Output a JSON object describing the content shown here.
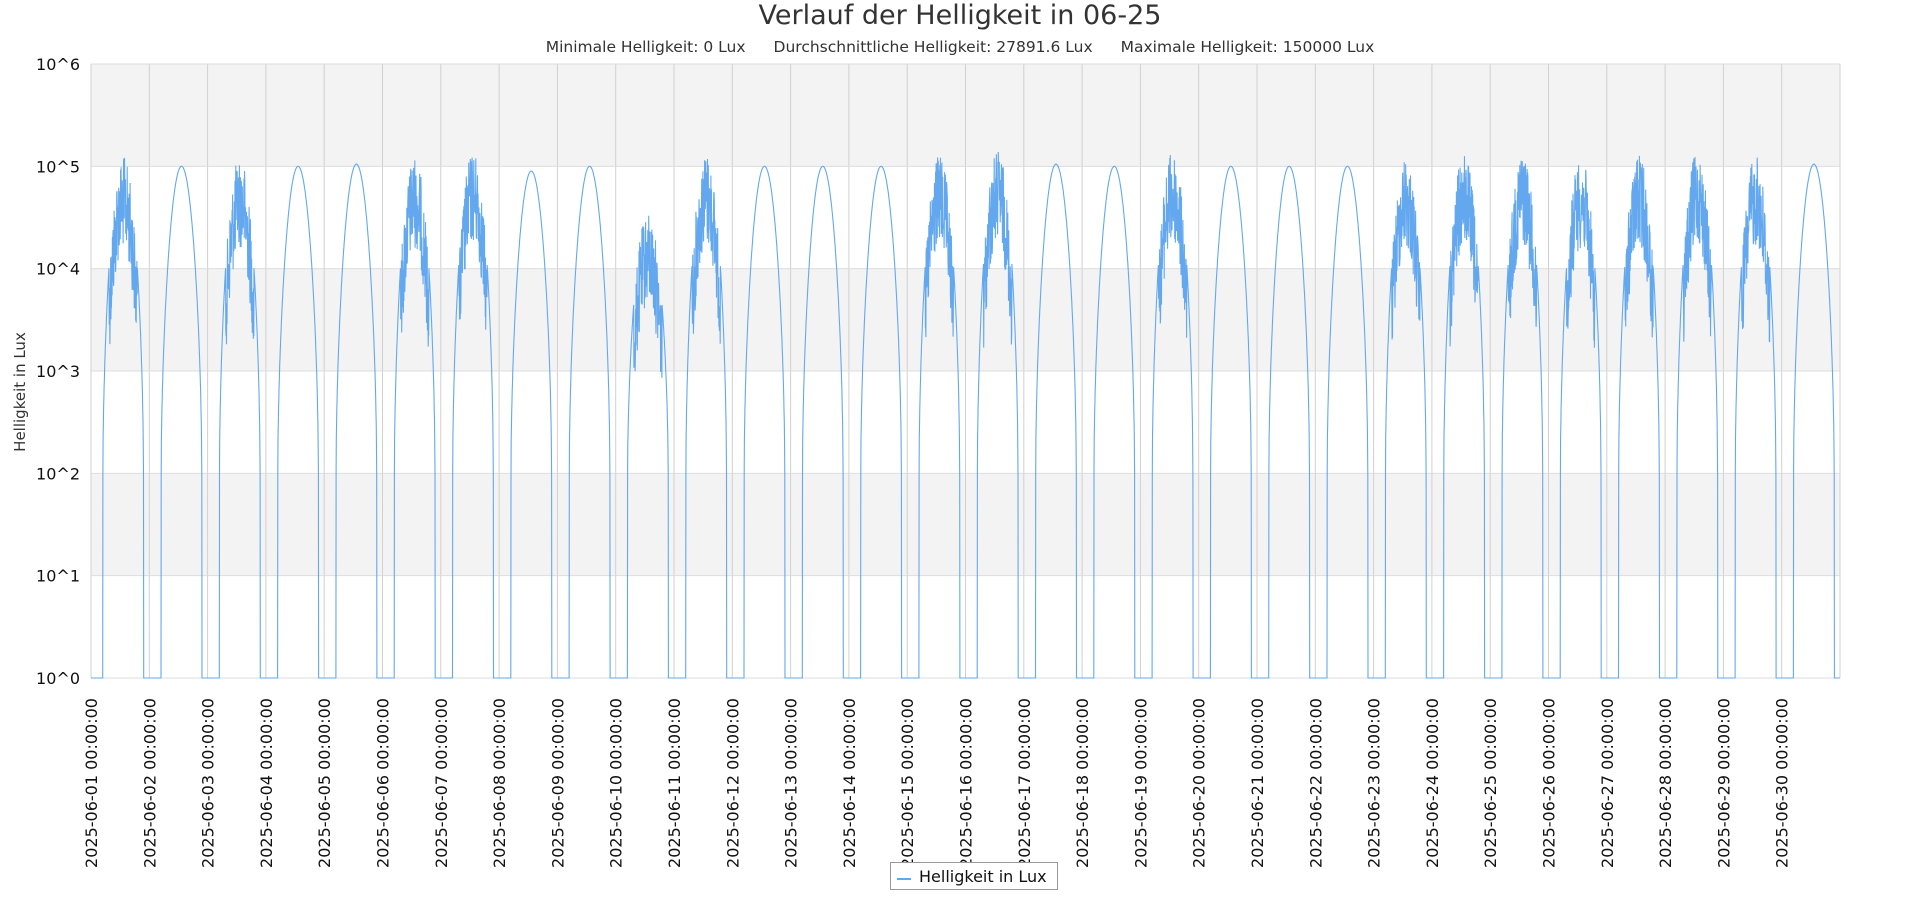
{
  "chart_data": {
    "type": "line",
    "title": "Verlauf der Helligkeit in 06-25",
    "subtitles": [
      "Minimale Helligkeit: 0 Lux",
      "Durchschnittliche Helligkeit: 27891.6 Lux",
      "Maximale Helligkeit: 150000 Lux"
    ],
    "xlabel": "",
    "ylabel": "Helligkeit in Lux",
    "y_scale": "log",
    "ylim": [
      1,
      1000000
    ],
    "y_tick_labels": [
      "10^0",
      "10^1",
      "10^2",
      "10^3",
      "10^4",
      "10^5",
      "10^6"
    ],
    "x_tick_labels": [
      "2025-06-01 00:00:00",
      "2025-06-02 00:00:00",
      "2025-06-03 00:00:00",
      "2025-06-04 00:00:00",
      "2025-06-05 00:00:00",
      "2025-06-06 00:00:00",
      "2025-06-07 00:00:00",
      "2025-06-08 00:00:00",
      "2025-06-09 00:00:00",
      "2025-06-10 00:00:00",
      "2025-06-11 00:00:00",
      "2025-06-12 00:00:00",
      "2025-06-13 00:00:00",
      "2025-06-14 00:00:00",
      "2025-06-15 00:00:00",
      "2025-06-16 00:00:00",
      "2025-06-17 00:00:00",
      "2025-06-18 00:00:00",
      "2025-06-19 00:00:00",
      "2025-06-20 00:00:00",
      "2025-06-21 00:00:00",
      "2025-06-22 00:00:00",
      "2025-06-23 00:00:00",
      "2025-06-24 00:00:00",
      "2025-06-25 00:00:00",
      "2025-06-26 00:00:00",
      "2025-06-27 00:00:00",
      "2025-06-28 00:00:00",
      "2025-06-29 00:00:00",
      "2025-06-30 00:00:00"
    ],
    "xlim": [
      "2025-06-01 00:00:00",
      "2025-07-01 00:00:00"
    ],
    "grid": true,
    "legend_position": "bottom-center",
    "series": [
      {
        "name": "Helligkeit in Lux",
        "color": "#63a8ee",
        "daily_peak_lux": [
          125000,
          100000,
          125000,
          100000,
          105000,
          125000,
          140000,
          90000,
          100000,
          35000,
          135000,
          100000,
          100000,
          100000,
          130000,
          145000,
          105000,
          100000,
          140000,
          100000,
          100000,
          100000,
          125000,
          135000,
          140000,
          125000,
          130000,
          140000,
          130000,
          105000
        ]
      }
    ]
  }
}
